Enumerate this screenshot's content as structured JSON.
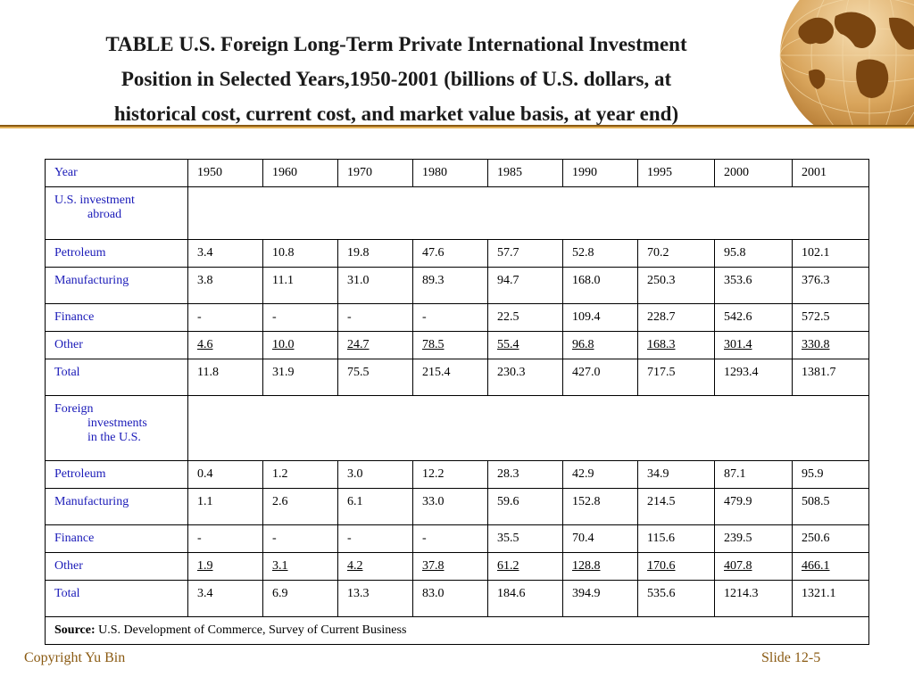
{
  "slide": {
    "title_lines": [
      "TABLE U.S. Foreign Long-Term Private International Investment",
      "Position in Selected Years,1950-2001 (billions of U.S. dollars, at",
      "historical cost, current cost, and market value basis, at year end)"
    ],
    "accent_color": "#8a5a12",
    "footer_left": "Copyright Yu Bin",
    "footer_right": "Slide 12-5",
    "logo_icon": "globe-icon"
  },
  "table": {
    "header": [
      "Year",
      "1950",
      "1960",
      "1970",
      "1980",
      "1985",
      "1990",
      "1995",
      "2000",
      "2001"
    ],
    "section_us": {
      "line1": "U.S. investment",
      "line2": "abroad"
    },
    "us_rows": [
      {
        "label": "Petroleum",
        "values": [
          "3.4",
          "10.8",
          "19.8",
          "47.6",
          "57.7",
          "52.8",
          "70.2",
          "95.8",
          "102.1"
        ],
        "underline": false
      },
      {
        "label": "Manufacturing",
        "values": [
          "3.8",
          "11.1",
          "31.0",
          "89.3",
          "94.7",
          "168.0",
          "250.3",
          "353.6",
          "376.3"
        ],
        "underline": false
      },
      {
        "label": "Finance",
        "values": [
          "-",
          "-",
          "-",
          "-",
          "22.5",
          "109.4",
          "228.7",
          "542.6",
          "572.5"
        ],
        "underline": false
      },
      {
        "label": "Other",
        "values": [
          "4.6",
          "10.0",
          "24.7",
          "78.5",
          "55.4",
          "96.8",
          "168.3",
          "301.4",
          "330.8"
        ],
        "underline": true
      },
      {
        "label": "Total",
        "values": [
          "11.8",
          "31.9",
          "75.5",
          "215.4",
          "230.3",
          "427.0",
          "717.5",
          "1293.4",
          "1381.7"
        ],
        "underline": false
      }
    ],
    "section_foreign": {
      "line1": "Foreign",
      "line2": "investments",
      "line3": "in the U.S."
    },
    "foreign_rows": [
      {
        "label": "Petroleum",
        "values": [
          "0.4",
          "1.2",
          "3.0",
          "12.2",
          "28.3",
          "42.9",
          "34.9",
          "87.1",
          "95.9"
        ],
        "underline": false
      },
      {
        "label": "Manufacturing",
        "values": [
          "1.1",
          "2.6",
          "6.1",
          "33.0",
          "59.6",
          "152.8",
          "214.5",
          "479.9",
          "508.5"
        ],
        "underline": false
      },
      {
        "label": "Finance",
        "values": [
          "-",
          "-",
          "-",
          "-",
          "35.5",
          "70.4",
          "115.6",
          "239.5",
          "250.6"
        ],
        "underline": false
      },
      {
        "label": "Other",
        "values": [
          "1.9",
          "3.1",
          "4.2",
          "37.8",
          "61.2",
          "128.8",
          "170.6",
          "407.8",
          "466.1"
        ],
        "underline": true
      },
      {
        "label": "Total",
        "values": [
          "3.4",
          "6.9",
          "13.3",
          "83.0",
          "184.6",
          "394.9",
          "535.6",
          "1214.3",
          "1321.1"
        ],
        "underline": false
      }
    ],
    "source_label": "Source:",
    "source_text": "U.S. Development of Commerce, Survey of Current Business"
  }
}
